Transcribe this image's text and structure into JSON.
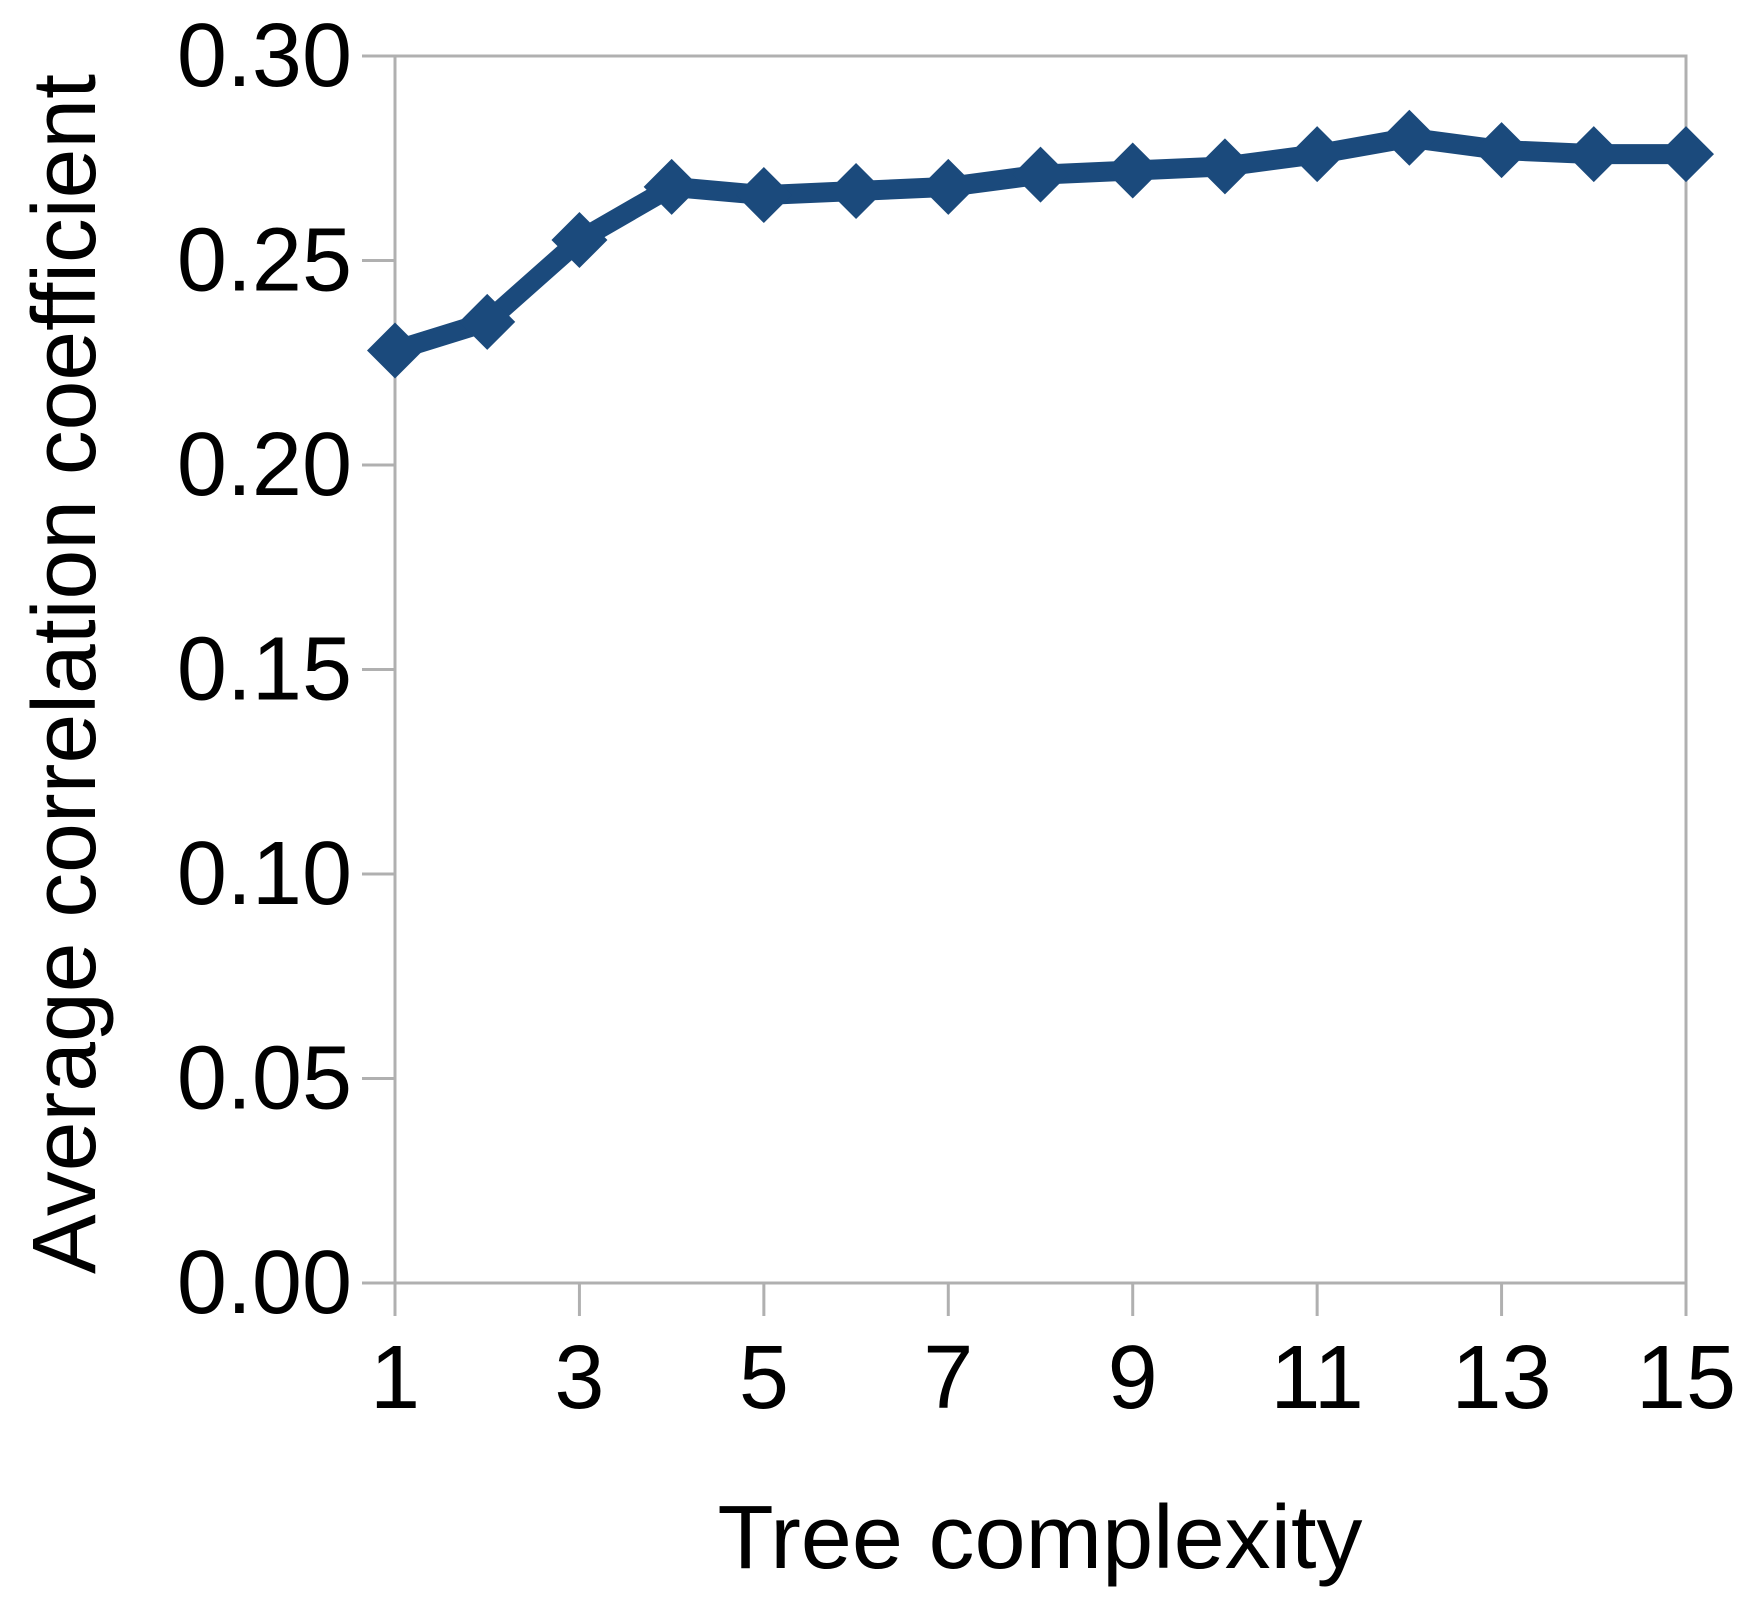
{
  "chart_data": {
    "type": "line",
    "title": "",
    "xlabel": "Tree complexity",
    "ylabel": "Average correlation coefficient",
    "x": [
      1,
      2,
      3,
      4,
      5,
      6,
      7,
      8,
      9,
      10,
      11,
      12,
      13,
      14,
      15
    ],
    "series": [
      {
        "name": "Average correlation coefficient",
        "values": [
          0.228,
          0.235,
          0.255,
          0.268,
          0.266,
          0.267,
          0.268,
          0.271,
          0.272,
          0.273,
          0.276,
          0.28,
          0.277,
          0.276,
          0.276
        ]
      }
    ],
    "xlim": [
      1,
      15
    ],
    "ylim": [
      0.0,
      0.3
    ],
    "xticks": {
      "values": [
        1,
        3,
        5,
        7,
        9,
        11,
        13,
        15
      ],
      "labels": [
        "1",
        "3",
        "5",
        "7",
        "9",
        "11",
        "13",
        "15"
      ]
    },
    "yticks": {
      "values": [
        0.0,
        0.05,
        0.1,
        0.15,
        0.2,
        0.25,
        0.3
      ],
      "labels": [
        "0.00",
        "0.05",
        "0.10",
        "0.15",
        "0.20",
        "0.25",
        "0.30"
      ]
    },
    "grid": false,
    "legend": false,
    "marker": "diamond",
    "colors": {
      "line": "#1B4A7C",
      "marker": "#1B4A7C",
      "axis": "#B0B0B0",
      "text": "#000000",
      "background": "#FFFFFF"
    }
  }
}
